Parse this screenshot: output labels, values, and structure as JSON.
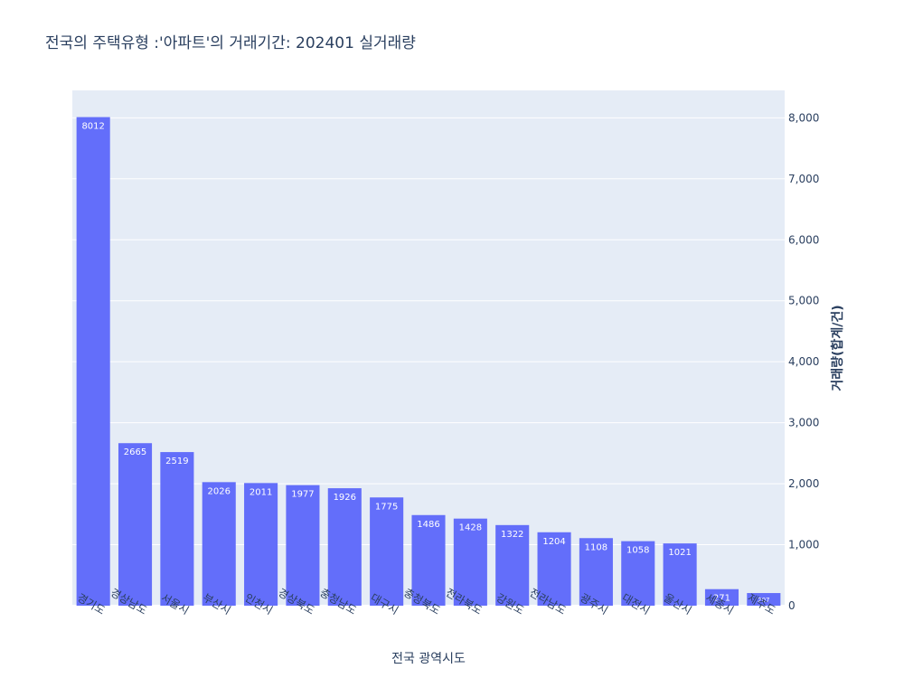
{
  "chart_data": {
    "type": "bar",
    "title": "전국의 주택유형 :'아파트'의 거래기간: 202401 실거래량",
    "xlabel": "전국 광역시도",
    "ylabel": "거래량(합계/건)",
    "ylim": [
      0,
      8450
    ],
    "yticks": [
      0,
      1000,
      2000,
      3000,
      4000,
      5000,
      6000,
      7000,
      8000
    ],
    "ytick_labels": [
      "0",
      "1,000",
      "2,000",
      "3,000",
      "4,000",
      "5,000",
      "6,000",
      "7,000",
      "8,000"
    ],
    "y_axis_side": "right",
    "grid": true,
    "bar_color": "#636efa",
    "plot_background": "#e5ecf6",
    "categories": [
      "경기도",
      "경상남도",
      "서울시",
      "부산시",
      "인천시",
      "경상북도",
      "충청남도",
      "대구시",
      "충청북도",
      "전라북도",
      "강원도",
      "전라남도",
      "광주시",
      "대전시",
      "울산시",
      "세종시",
      "제주도"
    ],
    "values": [
      8012,
      2665,
      2519,
      2026,
      2011,
      1977,
      1926,
      1775,
      1486,
      1428,
      1322,
      1204,
      1108,
      1058,
      1021,
      271,
      207
    ],
    "data_labels": [
      "8012",
      "2665",
      "2519",
      "2026",
      "2011",
      "1977",
      "1926",
      "1775",
      "1486",
      "1428",
      "1322",
      "1204",
      "1108",
      "1058",
      "1021",
      "271",
      "207"
    ]
  }
}
